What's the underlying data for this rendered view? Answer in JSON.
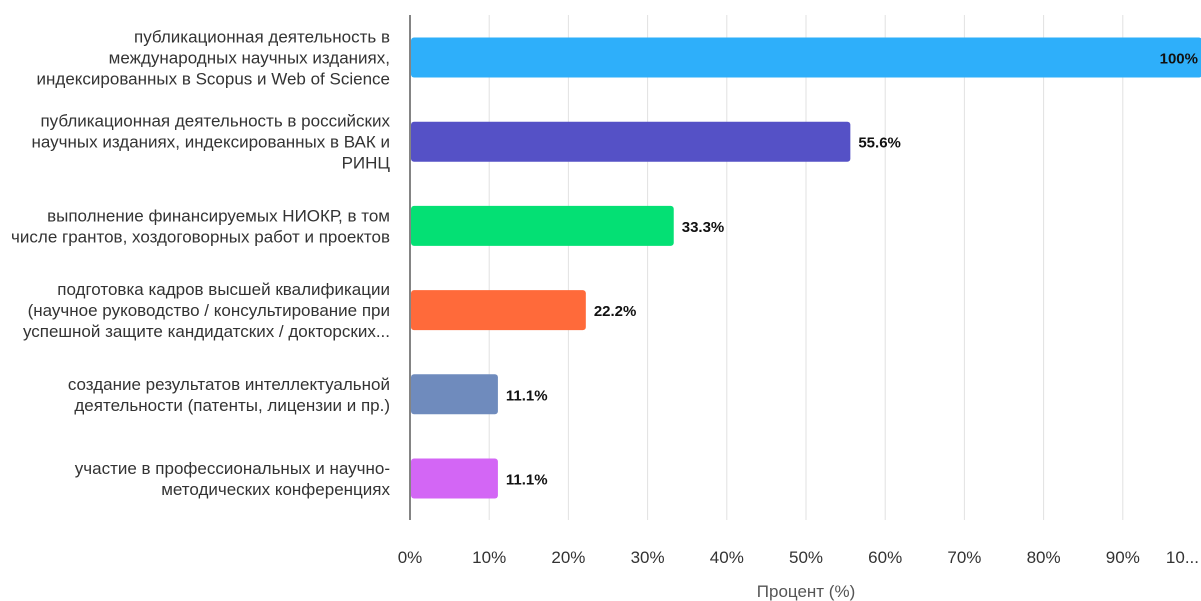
{
  "chart_data": {
    "type": "bar",
    "orientation": "horizontal",
    "categories": [
      [
        "публикационная деятельность в",
        "международных научных изданиях,",
        "индексированных в Scopus и Web of Science"
      ],
      [
        "публикационная деятельность в российских",
        "научных изданиях, индексированных в ВАК и",
        "РИНЦ"
      ],
      [
        "выполнение финансируемых НИОКР, в том",
        "числе грантов, хоздоговорных работ и проектов"
      ],
      [
        "подготовка кадров высшей квалификации",
        "(научное руководство / консультирование при",
        "успешной защите кандидатских / докторских..."
      ],
      [
        "создание результатов интеллектуальной",
        "деятельности (патенты, лицензии и пр.)"
      ],
      [
        "участие в профессиональных и научно-",
        "методических конференциях"
      ]
    ],
    "values": [
      100,
      55.6,
      33.3,
      22.2,
      11.1,
      11.1
    ],
    "data_labels": [
      "100%",
      "55.6%",
      "33.3%",
      "22.2%",
      "11.1%",
      "11.1%"
    ],
    "colors": [
      "#2eaffa",
      "#5551c6",
      "#04e074",
      "#ff6a3a",
      "#6f8bbd",
      "#d366f5"
    ],
    "xlim": [
      0,
      100
    ],
    "x_ticks": [
      "0%",
      "10%",
      "20%",
      "30%",
      "40%",
      "50%",
      "60%",
      "70%",
      "80%",
      "90%",
      "10..."
    ],
    "xlabel": "Процент (%)",
    "ylabel": "",
    "grid": "vertical",
    "gridline_color": "#e2e2e2"
  }
}
